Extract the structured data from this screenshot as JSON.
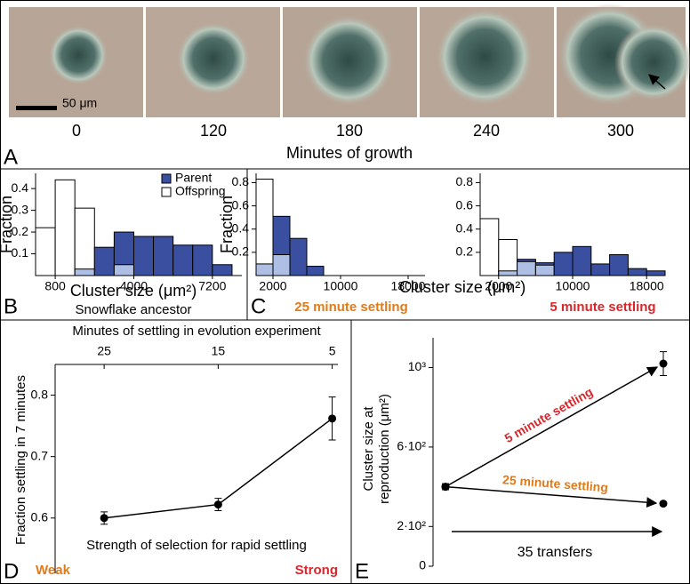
{
  "panel_a": {
    "letter": "A",
    "times": [
      "0",
      "120",
      "180",
      "240",
      "300"
    ],
    "axis_label": "Minutes of growth",
    "scale_bar": "50 μm"
  },
  "panel_letters": {
    "b": "B",
    "c": "C",
    "d": "D",
    "e": "E"
  },
  "chart_data": [
    {
      "type": "histogram",
      "ylabel": "Fraction",
      "xlabel": "Cluster size (μm²)",
      "subtitle": "Snowflake ancestor",
      "bins": [
        0,
        800,
        1600,
        2400,
        3200,
        4000,
        4800,
        5600,
        6400,
        7200,
        8000
      ],
      "series": [
        {
          "name": "Parent",
          "color": "#3b4fa0",
          "values": [
            0,
            0,
            0.03,
            0.13,
            0.2,
            0.18,
            0.18,
            0.14,
            0.14,
            0.05
          ]
        },
        {
          "name": "Offspring",
          "color": "#ffffff",
          "values": [
            0.22,
            0.44,
            0.31,
            0,
            0.05,
            0,
            0,
            0,
            0,
            0
          ]
        }
      ],
      "overlap_color": "#aebfe6",
      "xlim": [
        0,
        8400
      ],
      "xticks": [
        800,
        4000,
        7200
      ],
      "ylim": [
        0,
        0.47
      ],
      "yticks": [
        0.1,
        0.2,
        0.3,
        0.4
      ],
      "legend": "upper right"
    },
    {
      "type": "histogram",
      "ylabel": "Fraction",
      "xlabel": "Cluster size (μm²)",
      "subtitle": "25 minute settling",
      "subtitle_color": "#e07b1a",
      "bins": [
        0,
        2000,
        4000,
        6000,
        8000,
        10000,
        12000,
        14000,
        16000,
        18000,
        20000
      ],
      "series": [
        {
          "name": "Parent",
          "color": "#3b4fa0",
          "values": [
            0.1,
            0.51,
            0.32,
            0.08,
            0,
            0,
            0,
            0,
            0,
            0
          ]
        },
        {
          "name": "Offspring",
          "color": "#ffffff",
          "values": [
            0.83,
            0.18,
            0,
            0,
            0,
            0,
            0,
            0,
            0,
            0
          ]
        }
      ],
      "overlap_color": "#aebfe6",
      "xlim": [
        0,
        20000
      ],
      "xticks": [
        2000,
        10000,
        18000
      ],
      "ylim": [
        0,
        0.88
      ],
      "yticks": [
        0.2,
        0.4,
        0.6,
        0.8
      ]
    },
    {
      "type": "histogram",
      "subtitle": "5 minute settling",
      "subtitle_color": "#d9262b",
      "bins": [
        0,
        2000,
        4000,
        6000,
        8000,
        10000,
        12000,
        14000,
        16000,
        18000,
        20000
      ],
      "series": [
        {
          "name": "Parent",
          "color": "#3b4fa0",
          "values": [
            0,
            0.04,
            0.14,
            0.11,
            0.2,
            0.25,
            0.1,
            0.18,
            0.06,
            0.04
          ]
        },
        {
          "name": "Offspring",
          "color": "#ffffff",
          "values": [
            0.49,
            0.31,
            0.12,
            0.09,
            0,
            0,
            0,
            0,
            0,
            0
          ]
        }
      ],
      "overlap_color": "#aebfe6",
      "xlim": [
        0,
        20000
      ],
      "xticks": [
        2000,
        10000,
        18000
      ],
      "ylim": [
        0,
        0.88
      ],
      "yticks": [
        0.2,
        0.4,
        0.6,
        0.8
      ]
    },
    {
      "type": "line",
      "ylabel": "Fraction settling in 7 minutes",
      "top_label": "Minutes of settling in evolution experiment",
      "xlabel": "Strength of selection for rapid settling",
      "annotations": [
        {
          "text": "Weak",
          "color": "#e07b1a"
        },
        {
          "text": "Strong",
          "color": "#d9262b"
        }
      ],
      "x": [
        25,
        15,
        5
      ],
      "xlim": [
        29.3,
        4.5
      ],
      "xticks": [
        25,
        15,
        5
      ],
      "series": [
        {
          "color": "#000000",
          "values": [
            0.6,
            0.622,
            0.762
          ],
          "errors": [
            0.01,
            0.01,
            0.035
          ]
        }
      ],
      "ylim": [
        0.51,
        0.85
      ],
      "yticks": [
        0.6,
        0.7,
        0.8
      ]
    },
    {
      "type": "arrow",
      "ylabel": [
        "Cluster size at",
        "reproduction (μm²)"
      ],
      "xlabel": "35 transfers",
      "x": [
        0,
        35
      ],
      "xlim": [
        -2,
        37
      ],
      "ylim": [
        0,
        1150
      ],
      "yticks": [
        0,
        {
          "value": 200,
          "label": "2·10²"
        },
        {
          "value": 600,
          "label": "6·10²"
        },
        {
          "value": 1000,
          "label": "10³"
        }
      ],
      "series": [
        {
          "name": "5 minute settling",
          "color": "#d9262b",
          "values": [
            400,
            1020
          ],
          "errors": [
            15,
            60
          ]
        },
        {
          "name": "25 minute settling",
          "color": "#e07b1a",
          "values": [
            400,
            315
          ],
          "errors": [
            15,
            8
          ]
        }
      ]
    }
  ]
}
